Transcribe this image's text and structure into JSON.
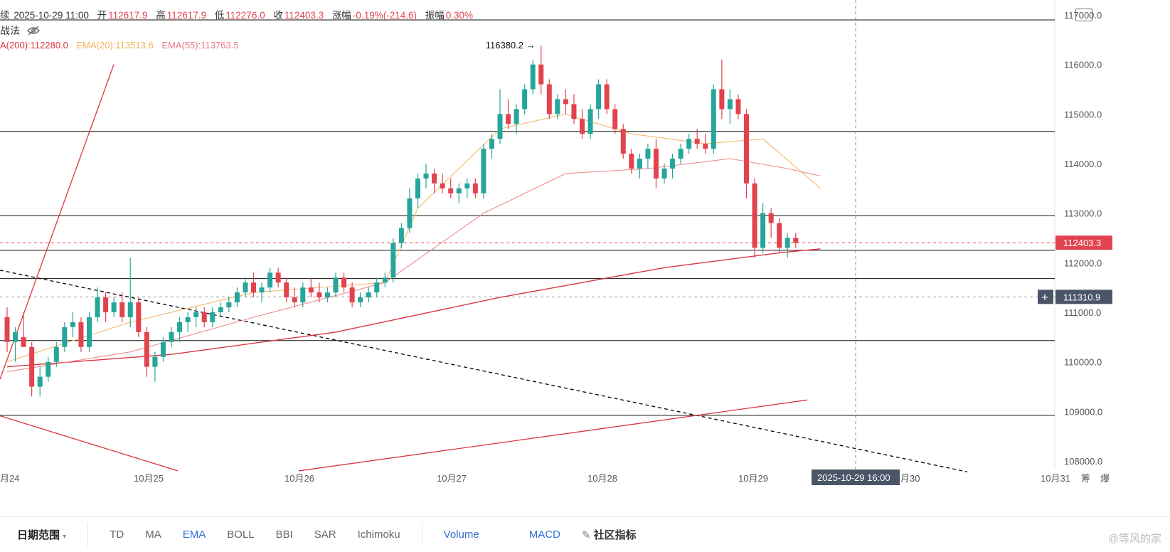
{
  "header": {
    "ohlc_prefix": "续",
    "datetime": "2025-10-29 11:00",
    "open_label": "开",
    "open": "112617.9",
    "high_label": "高",
    "high": "112617.9",
    "low_label": "低",
    "low": "112276.0",
    "close_label": "收",
    "close": "112403.3",
    "change_label": "涨幅",
    "change": "-0.19%(-214.6)",
    "amplitude_label": "振幅",
    "amplitude": "0.30%",
    "strategy_label": "战法",
    "ema200": "A(200):112280.0",
    "ema20": "EMA(20):113513.6",
    "ema55": "EMA(55):113763.5"
  },
  "toolbar": {
    "range_label": "日期范围",
    "td": "TD",
    "ma": "MA",
    "ema": "EMA",
    "boll": "BOLL",
    "bbi": "BBI",
    "sar": "SAR",
    "ichimoku": "Ichimoku",
    "volume": "Volume",
    "macd": "MACD",
    "community": "社区指标"
  },
  "watermark": "@等风的家",
  "chart_data": {
    "type": "candlestick",
    "ylim": [
      107800,
      117300
    ],
    "y_ticks": [
      117000,
      116000,
      115000,
      114000,
      113000,
      112000,
      111000,
      110000,
      109000,
      108000
    ],
    "y_tick_labels": [
      "117000.0",
      "116000.0",
      "115000.0",
      "114000.0",
      "113000.0",
      "112000.0",
      "111000.0",
      "110000.0",
      "109000.0",
      "108000.0"
    ],
    "x_tick_labels": [
      "月24",
      "10月25",
      "10月26",
      "10月27",
      "10月28",
      "10月29",
      "月30",
      "10月31"
    ],
    "x_tick_extra": [
      "筹",
      "爆"
    ],
    "current_price_label": "112403.3",
    "current_price": 112403.3,
    "crosshair_price_label": "111310.9",
    "crosshair_price": 111310.9,
    "crosshair_time_label": "2025-10-29 16:00",
    "peak_label": "116380.2",
    "peak_value": 116380.2,
    "horizontal_levels": [
      116900,
      114650,
      112950,
      112250,
      111680,
      110430,
      108920
    ],
    "colors": {
      "up": "#26a69a",
      "down": "#e2434f",
      "ema20": "#f5b96a",
      "ema55": "#ef8a8f",
      "ema200": "#d9363e",
      "trend": "#d9363e"
    },
    "candles": [
      [
        110900,
        111100,
        110200,
        110400
      ],
      [
        110400,
        110700,
        110000,
        110600
      ],
      [
        110500,
        111000,
        110300,
        110300
      ],
      [
        110300,
        110400,
        109300,
        109500
      ],
      [
        109500,
        109900,
        109300,
        109700
      ],
      [
        109700,
        110100,
        109600,
        110000
      ],
      [
        110000,
        110400,
        109900,
        110300
      ],
      [
        110300,
        110800,
        110200,
        110700
      ],
      [
        110700,
        111000,
        110500,
        110800
      ],
      [
        110800,
        110900,
        110200,
        110300
      ],
      [
        110300,
        111000,
        110200,
        110900
      ],
      [
        110900,
        111500,
        110800,
        111300
      ],
      [
        111300,
        111400,
        110800,
        111000
      ],
      [
        111000,
        111300,
        110900,
        111200
      ],
      [
        111200,
        111400,
        110800,
        110900
      ],
      [
        110900,
        112100,
        110700,
        111200
      ],
      [
        111200,
        111300,
        110500,
        110600
      ],
      [
        110600,
        110700,
        109700,
        109900
      ],
      [
        109900,
        110200,
        109600,
        110100
      ],
      [
        110100,
        110500,
        110000,
        110400
      ],
      [
        110400,
        110700,
        110300,
        110600
      ],
      [
        110600,
        110900,
        110400,
        110800
      ],
      [
        110800,
        111000,
        110600,
        110900
      ],
      [
        110900,
        111100,
        110700,
        111000
      ],
      [
        111000,
        111100,
        110700,
        110800
      ],
      [
        110800,
        111100,
        110700,
        111000
      ],
      [
        111000,
        111200,
        110900,
        111100
      ],
      [
        111100,
        111300,
        111000,
        111200
      ],
      [
        111200,
        111500,
        111100,
        111400
      ],
      [
        111400,
        111700,
        111300,
        111600
      ],
      [
        111600,
        111800,
        111300,
        111400
      ],
      [
        111400,
        111600,
        111200,
        111500
      ],
      [
        111500,
        111900,
        111400,
        111800
      ],
      [
        111800,
        111900,
        111500,
        111600
      ],
      [
        111600,
        111700,
        111200,
        111300
      ],
      [
        111300,
        111500,
        111100,
        111200
      ],
      [
        111200,
        111600,
        111100,
        111500
      ],
      [
        111500,
        111700,
        111300,
        111400
      ],
      [
        111400,
        111600,
        111200,
        111300
      ],
      [
        111300,
        111500,
        111200,
        111400
      ],
      [
        111400,
        111800,
        111300,
        111700
      ],
      [
        111700,
        111800,
        111400,
        111500
      ],
      [
        111500,
        111600,
        111100,
        111200
      ],
      [
        111200,
        111400,
        111100,
        111300
      ],
      [
        111300,
        111500,
        111200,
        111400
      ],
      [
        111400,
        111700,
        111300,
        111600
      ],
      [
        111600,
        111800,
        111500,
        111700
      ],
      [
        111700,
        112500,
        111600,
        112400
      ],
      [
        112400,
        112800,
        112300,
        112700
      ],
      [
        112700,
        113500,
        112600,
        113300
      ],
      [
        113300,
        113800,
        113100,
        113700
      ],
      [
        113700,
        114000,
        113500,
        113800
      ],
      [
        113800,
        113900,
        113400,
        113600
      ],
      [
        113600,
        113800,
        113400,
        113500
      ],
      [
        113500,
        113700,
        113300,
        113400
      ],
      [
        113400,
        113600,
        113200,
        113500
      ],
      [
        113500,
        113700,
        113300,
        113600
      ],
      [
        113600,
        113700,
        113300,
        113400
      ],
      [
        113400,
        114400,
        113300,
        114300
      ],
      [
        114300,
        114600,
        114100,
        114500
      ],
      [
        114500,
        115500,
        114400,
        115000
      ],
      [
        115000,
        115300,
        114700,
        114800
      ],
      [
        114800,
        115200,
        114600,
        115100
      ],
      [
        115100,
        115600,
        115000,
        115500
      ],
      [
        115500,
        116100,
        115400,
        116000
      ],
      [
        116000,
        116380,
        115400,
        115600
      ],
      [
        115600,
        115700,
        114900,
        115000
      ],
      [
        115000,
        115400,
        114900,
        115300
      ],
      [
        115300,
        115500,
        115000,
        115200
      ],
      [
        115200,
        115400,
        114800,
        114900
      ],
      [
        114900,
        115100,
        114500,
        114600
      ],
      [
        114600,
        115200,
        114500,
        115100
      ],
      [
        115100,
        115700,
        114900,
        115600
      ],
      [
        115600,
        115700,
        115000,
        115100
      ],
      [
        115100,
        115200,
        114600,
        114700
      ],
      [
        114700,
        114800,
        114100,
        114200
      ],
      [
        114200,
        114300,
        113800,
        113900
      ],
      [
        113900,
        114200,
        113700,
        114100
      ],
      [
        114100,
        114400,
        113900,
        114300
      ],
      [
        114300,
        114500,
        113500,
        113700
      ],
      [
        113700,
        114000,
        113600,
        113900
      ],
      [
        113900,
        114200,
        113700,
        114100
      ],
      [
        114100,
        114400,
        114000,
        114300
      ],
      [
        114300,
        114600,
        114200,
        114500
      ],
      [
        114500,
        114700,
        114300,
        114400
      ],
      [
        114400,
        114600,
        114200,
        114300
      ],
      [
        114300,
        115600,
        114200,
        115500
      ],
      [
        115500,
        116100,
        114900,
        115100
      ],
      [
        115100,
        115500,
        114800,
        115300
      ],
      [
        115300,
        115400,
        114900,
        115000
      ],
      [
        115000,
        115100,
        113300,
        113600
      ],
      [
        113600,
        113700,
        112100,
        112300
      ],
      [
        112300,
        113200,
        112200,
        113000
      ],
      [
        113000,
        113100,
        112500,
        112800
      ],
      [
        112800,
        112900,
        112200,
        112300
      ],
      [
        112300,
        112600,
        112100,
        112500
      ],
      [
        112500,
        112600,
        112300,
        112400
      ]
    ],
    "ema20": [
      [
        0,
        110000
      ],
      [
        15,
        110800
      ],
      [
        30,
        111400
      ],
      [
        46,
        111600
      ],
      [
        50,
        113100
      ],
      [
        60,
        114700
      ],
      [
        68,
        115000
      ],
      [
        76,
        114600
      ],
      [
        85,
        114400
      ],
      [
        92,
        114500
      ],
      [
        99,
        113500
      ]
    ],
    "ema55": [
      [
        0,
        109800
      ],
      [
        15,
        110200
      ],
      [
        30,
        110900
      ],
      [
        46,
        111600
      ],
      [
        58,
        113000
      ],
      [
        68,
        113800
      ],
      [
        78,
        113900
      ],
      [
        88,
        114100
      ],
      [
        95,
        113900
      ],
      [
        99,
        113750
      ]
    ],
    "ema200": [
      [
        0,
        109900
      ],
      [
        20,
        110150
      ],
      [
        40,
        110600
      ],
      [
        60,
        111300
      ],
      [
        80,
        111900
      ],
      [
        94,
        112200
      ],
      [
        99,
        112280
      ]
    ],
    "trendlines": [
      {
        "style": "solid",
        "color": "#d9363e",
        "points": [
          [
            0,
            109650
          ],
          [
            160,
            116000
          ]
        ]
      },
      {
        "style": "dashed",
        "color": "#000000",
        "points": [
          [
            0,
            111850
          ],
          [
            1360,
            107780
          ]
        ]
      },
      {
        "style": "solid",
        "color": "#d9363e",
        "points": [
          [
            -20,
            109000
          ],
          [
            250,
            107800
          ]
        ]
      },
      {
        "style": "solid",
        "color": "#d9363e",
        "points": [
          [
            420,
            107800
          ],
          [
            1135,
            109230
          ]
        ]
      }
    ]
  }
}
